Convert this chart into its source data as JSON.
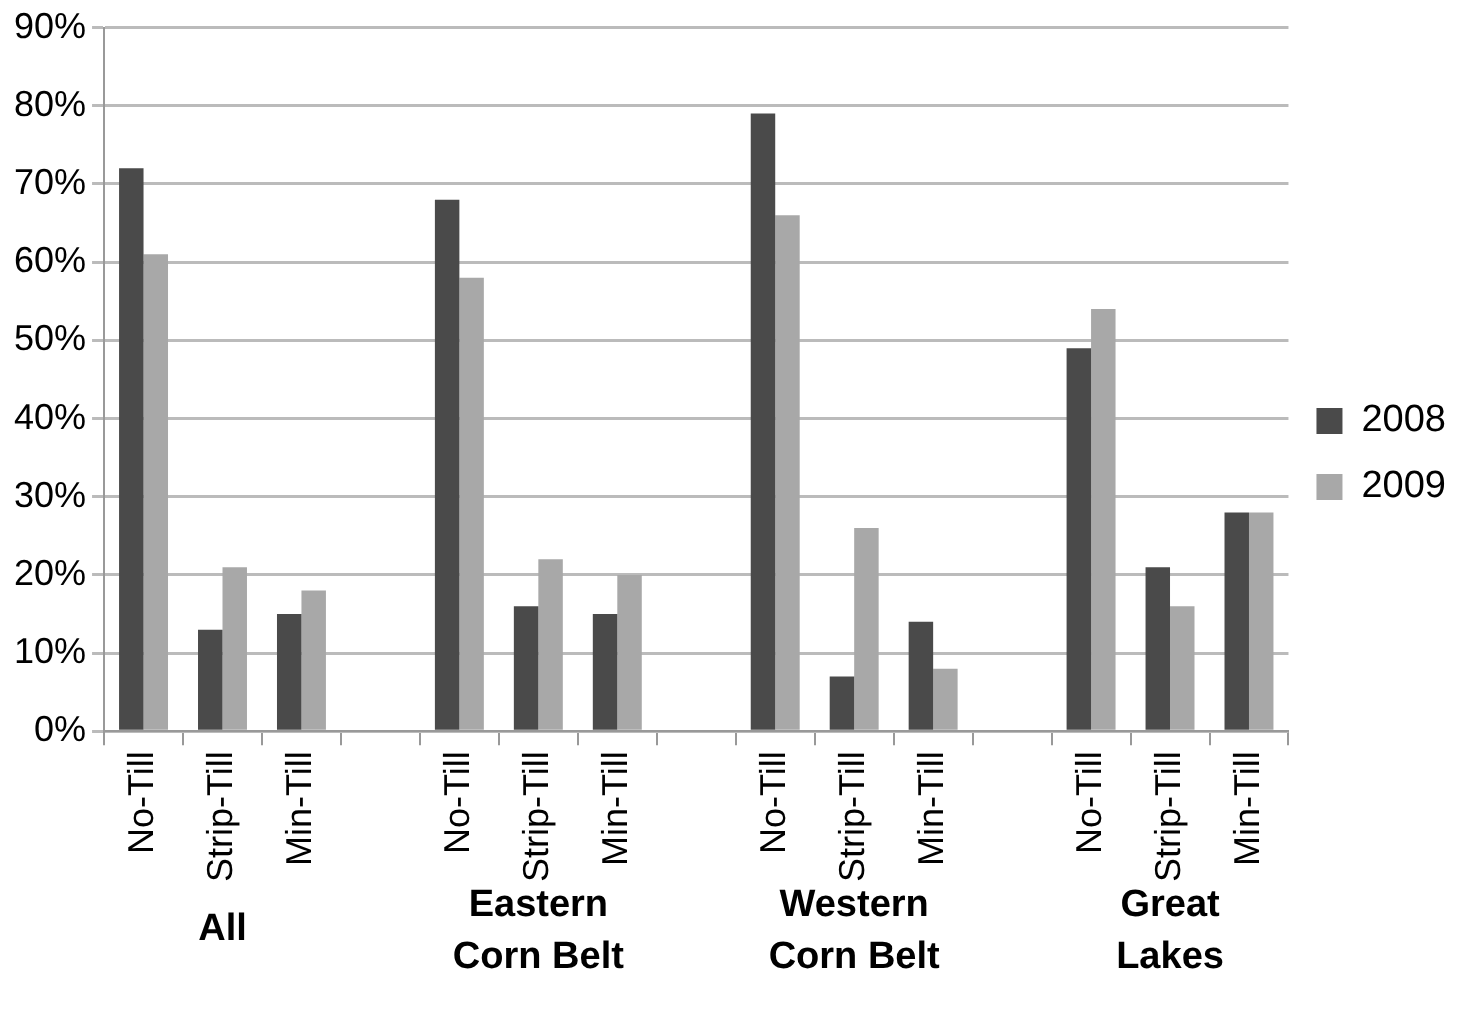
{
  "chart_data": {
    "type": "bar",
    "categories": [
      "No-Till",
      "Strip-Till",
      "Min-Till",
      null,
      "No-Till",
      "Strip-Till",
      "Min-Till",
      null,
      "No-Till",
      "Strip-Till",
      "Min-Till",
      null,
      "No-Till",
      "Strip-Till",
      "Min-Till"
    ],
    "series": [
      {
        "name": "2008",
        "color": "#4a4a4a",
        "values": [
          72,
          13,
          15,
          null,
          68,
          16,
          15,
          null,
          79,
          7,
          14,
          null,
          49,
          21,
          28
        ]
      },
      {
        "name": "2009",
        "color": "#a8a8a8",
        "values": [
          61,
          21,
          18,
          null,
          58,
          22,
          20,
          null,
          66,
          26,
          8,
          null,
          54,
          16,
          28
        ]
      }
    ],
    "ylim": [
      0,
      90
    ],
    "yticks": [
      {
        "value": 0,
        "label": "0%"
      },
      {
        "value": 10,
        "label": "10%"
      },
      {
        "value": 20,
        "label": "20%"
      },
      {
        "value": 30,
        "label": "30%"
      },
      {
        "value": 40,
        "label": "40%"
      },
      {
        "value": 50,
        "label": "50%"
      },
      {
        "value": 60,
        "label": "60%"
      },
      {
        "value": 70,
        "label": "70%"
      },
      {
        "value": 80,
        "label": "80%"
      },
      {
        "value": 90,
        "label": "90%"
      }
    ],
    "annotations": [
      "All",
      "Eastern Corn Belt",
      "Western Corn Belt",
      "Great Lakes"
    ],
    "grid": "y",
    "legend": "right"
  }
}
